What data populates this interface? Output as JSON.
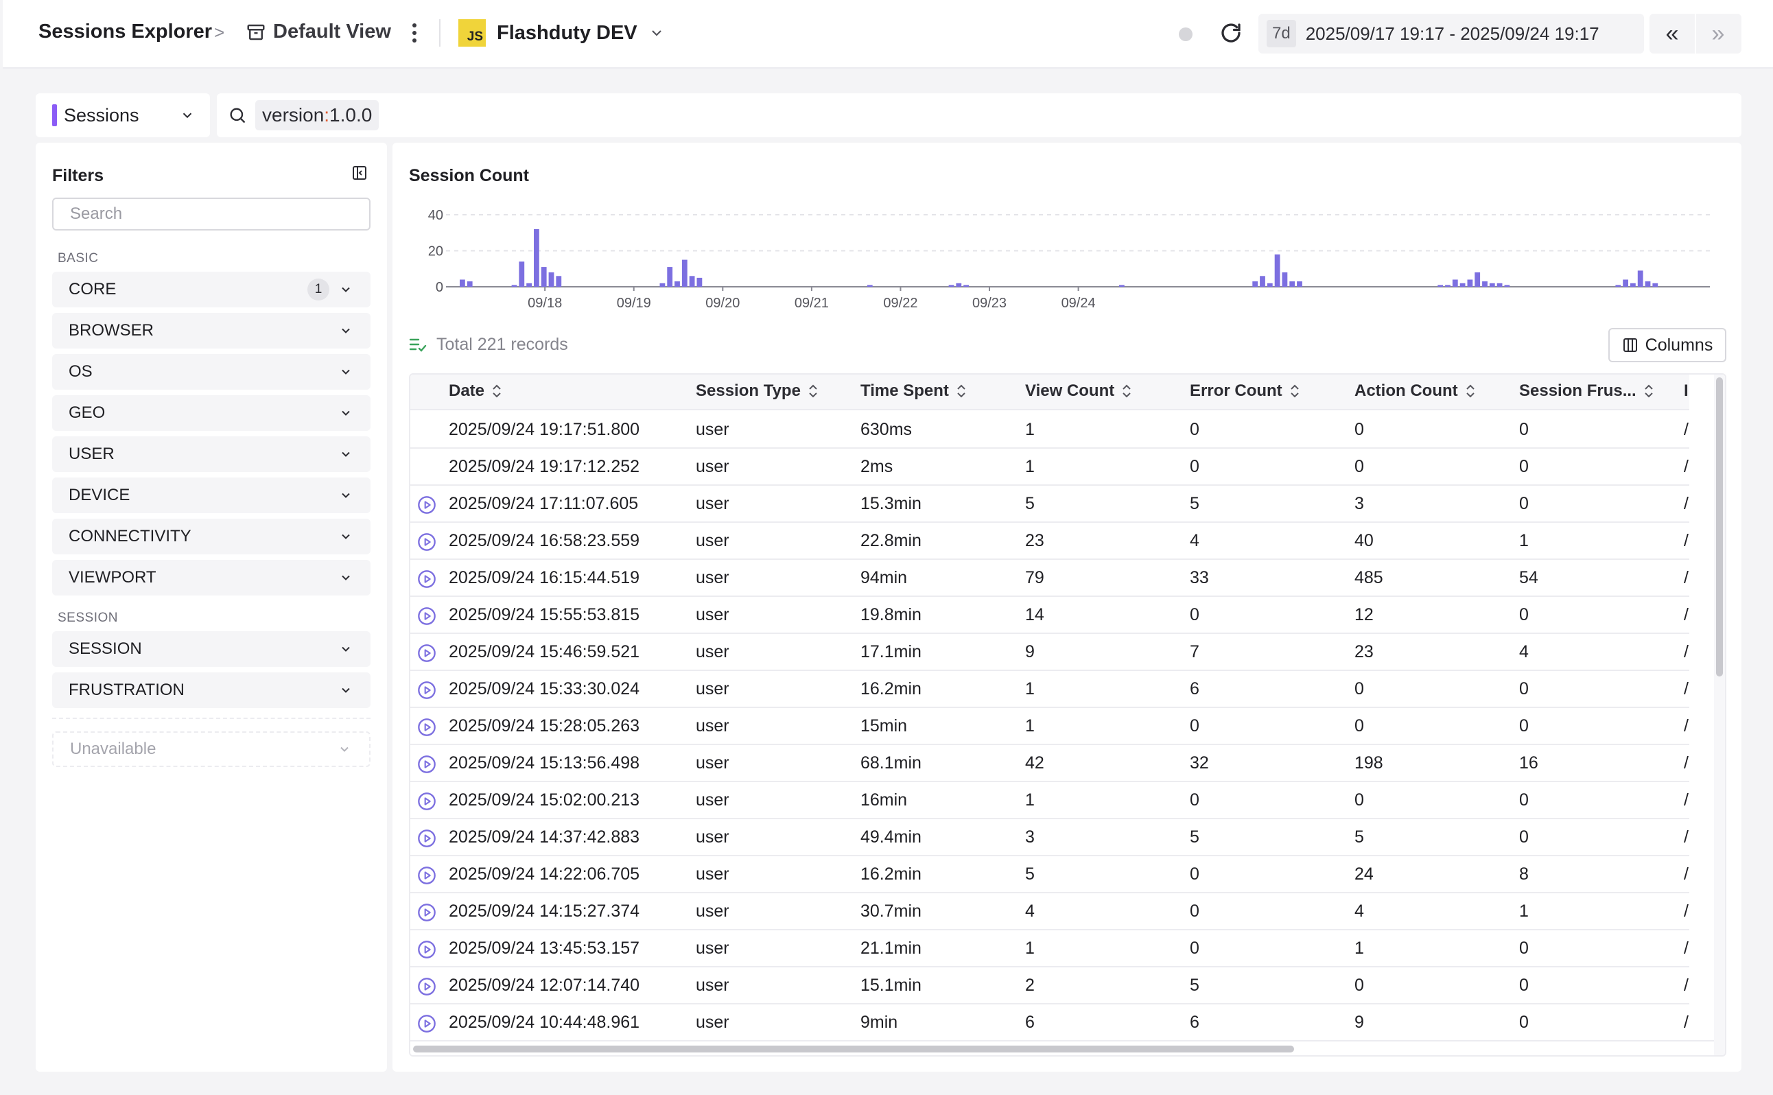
{
  "header": {
    "title": "Sessions Explorer",
    "separator": ">",
    "view_name": "Default View",
    "app_badge": "JS",
    "app_name": "Flashduty DEV",
    "time_chip": "7d",
    "time_range": "2025/09/17 19:17 - 2025/09/24 19:17",
    "prev_label": "«",
    "next_label": "»"
  },
  "query": {
    "source": "Sessions",
    "source_color": "#8b5cf6",
    "token_key": "version",
    "token_colon": ":",
    "token_value": "1.0.0"
  },
  "filters": {
    "title": "Filters",
    "search_placeholder": "Search",
    "groups": [
      {
        "label": "BASIC",
        "items": [
          {
            "label": "CORE",
            "count": "1"
          },
          {
            "label": "BROWSER"
          },
          {
            "label": "OS"
          },
          {
            "label": "GEO"
          },
          {
            "label": "USER"
          },
          {
            "label": "DEVICE"
          },
          {
            "label": "CONNECTIVITY"
          },
          {
            "label": "VIEWPORT"
          }
        ]
      },
      {
        "label": "SESSION",
        "items": [
          {
            "label": "SESSION"
          },
          {
            "label": "FRUSTRATION"
          }
        ]
      }
    ],
    "unavailable_label": "Unavailable"
  },
  "chart_data": {
    "type": "bar",
    "title": "Session Count",
    "ylim": [
      0,
      40
    ],
    "yticks": [
      0,
      20,
      40
    ],
    "xticks": [
      "09/18",
      "09/19",
      "09/20",
      "09/21",
      "09/22",
      "09/23",
      "09/24"
    ],
    "grid": true,
    "bar_color": "#7c6fe0",
    "bins_per_day": 12,
    "bin_offset": 0,
    "values": [
      4,
      3,
      0,
      0,
      0,
      0,
      0,
      1,
      14,
      2,
      32,
      11,
      8,
      6,
      0,
      0,
      0,
      0,
      0,
      0,
      0,
      0,
      0,
      0,
      0,
      0,
      0,
      2,
      11,
      3,
      15,
      6,
      5,
      0,
      0,
      0,
      0,
      0,
      0,
      0,
      0,
      0,
      0,
      0,
      0,
      0,
      0,
      0,
      0,
      0,
      0,
      0,
      0,
      0,
      0,
      1,
      0,
      0,
      0,
      0,
      0,
      0,
      0,
      0,
      0,
      0,
      1,
      2,
      1,
      0,
      0,
      0,
      0,
      0,
      0,
      0,
      0,
      0,
      0,
      0,
      0,
      0,
      0,
      0,
      0,
      0,
      0,
      0,
      0,
      1,
      0,
      0,
      0,
      0,
      0,
      0,
      0,
      0,
      0,
      0,
      0,
      0,
      0,
      0,
      0,
      0,
      0,
      3,
      6,
      2,
      18,
      8,
      3,
      3,
      0,
      0,
      0,
      0,
      0,
      0,
      0,
      0,
      0,
      0,
      0,
      0,
      0,
      0,
      0,
      0,
      0,
      0,
      1,
      1,
      4,
      2,
      4,
      8,
      3,
      2,
      2,
      1,
      0,
      0,
      0,
      0,
      0,
      0,
      0,
      0,
      0,
      0,
      0,
      0,
      0,
      0,
      1,
      4,
      2,
      9,
      3,
      2,
      0,
      0,
      0,
      0,
      0,
      0
    ]
  },
  "table": {
    "total_text": "Total 221 records",
    "columns_button": "Columns",
    "headers": [
      "Date",
      "Session Type",
      "Time Spent",
      "View Count",
      "Error Count",
      "Action Count",
      "Session Frus...",
      "Initi"
    ],
    "rows": [
      {
        "replay": false,
        "date": "2025/09/24 19:17:51.800",
        "type": "user",
        "time": "630ms",
        "views": "1",
        "errors": "0",
        "actions": "0",
        "frust": "0",
        "init": "/rum"
      },
      {
        "replay": false,
        "date": "2025/09/24 19:17:12.252",
        "type": "user",
        "time": "2ms",
        "views": "1",
        "errors": "0",
        "actions": "0",
        "frust": "0",
        "init": "/cha"
      },
      {
        "replay": true,
        "date": "2025/09/24 17:11:07.605",
        "type": "user",
        "time": "15.3min",
        "views": "5",
        "errors": "5",
        "actions": "3",
        "frust": "0",
        "init": "/"
      },
      {
        "replay": true,
        "date": "2025/09/24 16:58:23.559",
        "type": "user",
        "time": "22.8min",
        "views": "23",
        "errors": "4",
        "actions": "40",
        "frust": "1",
        "init": "/onb"
      },
      {
        "replay": true,
        "date": "2025/09/24 16:15:44.519",
        "type": "user",
        "time": "94min",
        "views": "79",
        "errors": "33",
        "actions": "485",
        "frust": "54",
        "init": "/acc"
      },
      {
        "replay": true,
        "date": "2025/09/24 15:55:53.815",
        "type": "user",
        "time": "19.8min",
        "views": "14",
        "errors": "0",
        "actions": "12",
        "frust": "0",
        "init": "/cha"
      },
      {
        "replay": true,
        "date": "2025/09/24 15:46:59.521",
        "type": "user",
        "time": "17.1min",
        "views": "9",
        "errors": "7",
        "actions": "23",
        "frust": "4",
        "init": "/pro"
      },
      {
        "replay": true,
        "date": "2025/09/24 15:33:30.024",
        "type": "user",
        "time": "16.2min",
        "views": "1",
        "errors": "6",
        "actions": "0",
        "frust": "0",
        "init": "/inci"
      },
      {
        "replay": true,
        "date": "2025/09/24 15:28:05.263",
        "type": "user",
        "time": "15min",
        "views": "1",
        "errors": "0",
        "actions": "0",
        "frust": "0",
        "init": "/pro"
      },
      {
        "replay": true,
        "date": "2025/09/24 15:13:56.498",
        "type": "user",
        "time": "68.1min",
        "views": "42",
        "errors": "32",
        "actions": "198",
        "frust": "16",
        "init": "/"
      },
      {
        "replay": true,
        "date": "2025/09/24 15:02:00.213",
        "type": "user",
        "time": "16min",
        "views": "1",
        "errors": "0",
        "actions": "0",
        "frust": "0",
        "init": "/inci"
      },
      {
        "replay": true,
        "date": "2025/09/24 14:37:42.883",
        "type": "user",
        "time": "49.4min",
        "views": "3",
        "errors": "5",
        "actions": "5",
        "frust": "0",
        "init": "/"
      },
      {
        "replay": true,
        "date": "2025/09/24 14:22:06.705",
        "type": "user",
        "time": "16.2min",
        "views": "5",
        "errors": "0",
        "actions": "24",
        "frust": "8",
        "init": "/cha"
      },
      {
        "replay": true,
        "date": "2025/09/24 14:15:27.374",
        "type": "user",
        "time": "30.7min",
        "views": "4",
        "errors": "0",
        "actions": "4",
        "frust": "1",
        "init": "/onc"
      },
      {
        "replay": true,
        "date": "2025/09/24 13:45:53.157",
        "type": "user",
        "time": "21.1min",
        "views": "1",
        "errors": "0",
        "actions": "1",
        "frust": "0",
        "init": "/onc"
      },
      {
        "replay": true,
        "date": "2025/09/24 12:07:14.740",
        "type": "user",
        "time": "15.1min",
        "views": "2",
        "errors": "5",
        "actions": "0",
        "frust": "0",
        "init": "/cha"
      },
      {
        "replay": true,
        "date": "2025/09/24 10:44:48.961",
        "type": "user",
        "time": "9min",
        "views": "6",
        "errors": "6",
        "actions": "9",
        "frust": "0",
        "init": "/"
      }
    ]
  }
}
